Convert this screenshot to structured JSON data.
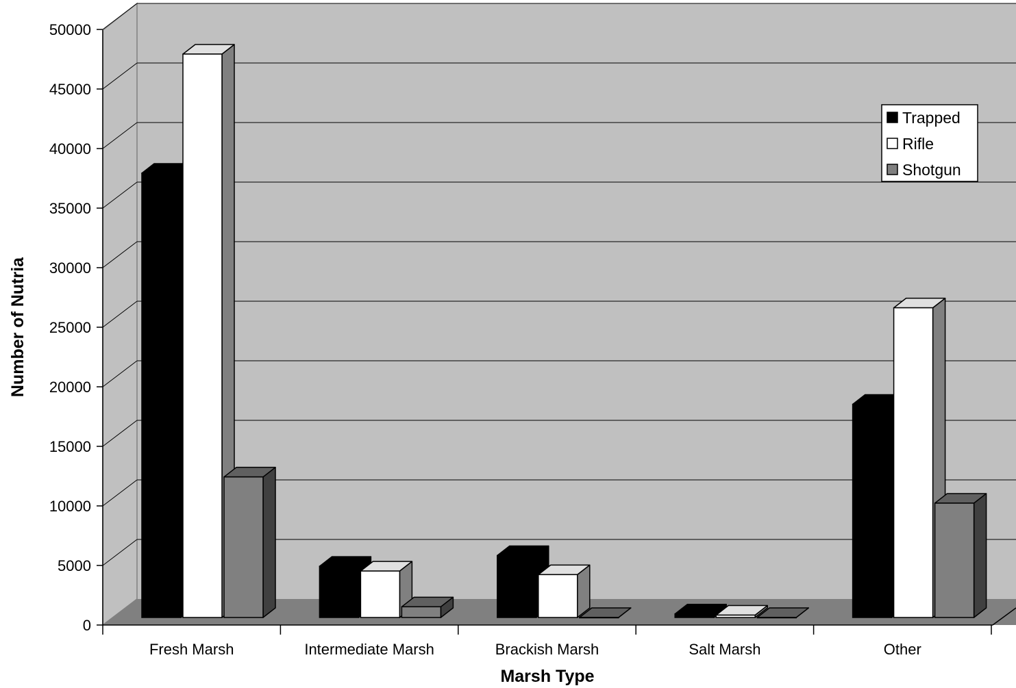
{
  "chart_data": {
    "type": "bar",
    "variant": "3d-clustered-column",
    "title": "",
    "xlabel": "Marsh Type",
    "ylabel": "Number of Nutria",
    "categories": [
      "Fresh Marsh",
      "Intermediate Marsh",
      "Brackish Marsh",
      "Salt Marsh",
      "Other"
    ],
    "series": [
      {
        "name": "Trapped",
        "color": "#000000",
        "values": [
          37300,
          4300,
          5200,
          300,
          17900
        ]
      },
      {
        "name": "Rifle",
        "color": "#ffffff",
        "values": [
          47300,
          3900,
          3600,
          200,
          26000
        ]
      },
      {
        "name": "Shotgun",
        "color": "#808080",
        "values": [
          11800,
          900,
          0,
          0,
          9600
        ]
      }
    ],
    "ylim": [
      0,
      50000
    ],
    "yticks": [
      "0",
      "5000",
      "10000",
      "15000",
      "20000",
      "25000",
      "30000",
      "35000",
      "40000",
      "45000",
      "50000"
    ],
    "grid": true,
    "legend_position": "top-right",
    "colors": {
      "wall": "#c0c0c0",
      "floor": "#808080"
    }
  }
}
